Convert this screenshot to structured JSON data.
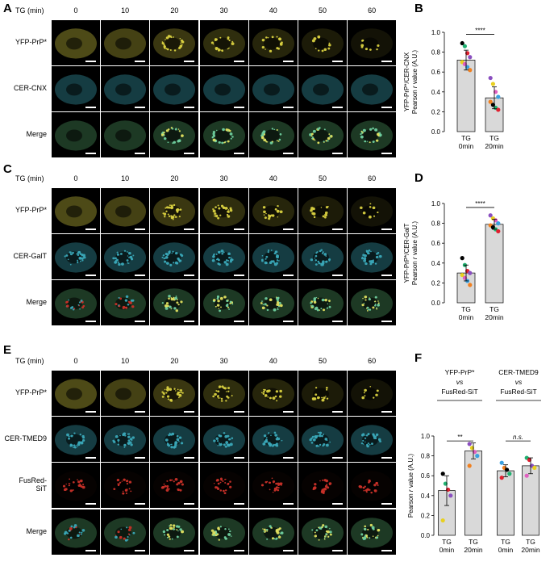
{
  "panel_labels": {
    "A": "A",
    "B": "B",
    "C": "C",
    "D": "D",
    "E": "E",
    "F": "F"
  },
  "tg_label": "TG (min)",
  "timepoints": [
    "0",
    "10",
    "20",
    "30",
    "40",
    "50",
    "60"
  ],
  "panelA": {
    "rows": [
      "YFP-PrP*",
      "CER-CNX",
      "Merge"
    ]
  },
  "panelC": {
    "rows": [
      "YFP-PrP*",
      "CER-GalT",
      "Merge"
    ]
  },
  "panelE": {
    "rows": [
      "YFP-PrP*",
      "CER-TMED9",
      "FusRed-SiT",
      "Merge"
    ]
  },
  "colors": {
    "yellow": "#d8d040",
    "cyan": "#3aa8b8",
    "green": "#5ab070",
    "red": "#c83028",
    "bar_fill": "#d9d9d9",
    "dots": [
      "#000000",
      "#8a4fc0",
      "#3aa0e0",
      "#20b070",
      "#e8d020",
      "#f08020",
      "#e02030",
      "#e060c0"
    ]
  },
  "chart_data": [
    {
      "panel": "B",
      "type": "bar",
      "ylabel": "YFP-PrP*/CER-CNX\nPearson r value (A.U.)",
      "ylim": [
        0,
        1.0
      ],
      "yticks": [
        "0.0",
        "0.2",
        "0.4",
        "0.6",
        "0.8",
        "1.0"
      ],
      "categories": [
        "TG\n0min",
        "TG\n20min"
      ],
      "values": [
        0.72,
        0.34
      ],
      "errors": [
        0.1,
        0.11
      ],
      "points": [
        [
          0.89,
          0.86,
          0.79,
          0.75,
          0.7,
          0.68,
          0.65,
          0.62
        ],
        [
          0.54,
          0.48,
          0.4,
          0.35,
          0.3,
          0.27,
          0.24,
          0.22
        ]
      ],
      "significance": "****"
    },
    {
      "panel": "D",
      "type": "bar",
      "ylabel": "YFP-PrP*/CER-GalT\nPearson r value (A.U.)",
      "ylim": [
        0,
        1.0
      ],
      "yticks": [
        "0.0",
        "0.2",
        "0.4",
        "0.6",
        "0.8",
        "1.0"
      ],
      "categories": [
        "TG\n0min",
        "TG\n20min"
      ],
      "values": [
        0.3,
        0.79
      ],
      "errors": [
        0.08,
        0.05
      ],
      "points": [
        [
          0.45,
          0.38,
          0.32,
          0.3,
          0.28,
          0.25,
          0.22,
          0.18
        ],
        [
          0.88,
          0.85,
          0.83,
          0.8,
          0.78,
          0.76,
          0.74,
          0.72
        ]
      ],
      "significance": "****"
    },
    {
      "panel": "F",
      "type": "bar",
      "ylabel": "Pearson r value (A.U.)",
      "ylim": [
        0,
        1.0
      ],
      "yticks": [
        "0.0",
        "0.2",
        "0.4",
        "0.6",
        "0.8",
        "1.0"
      ],
      "group_titles": [
        [
          "YFP-PrP*",
          "vs",
          "FusRed-SiT"
        ],
        [
          "CER-TMED9",
          "vs",
          "FusRed-SiT"
        ]
      ],
      "categories": [
        "TG\n0min",
        "TG\n20min",
        "TG\n0min",
        "TG\n20min"
      ],
      "values": [
        0.45,
        0.85,
        0.65,
        0.7
      ],
      "errors": [
        0.15,
        0.08,
        0.06,
        0.08
      ],
      "points": [
        [
          0.62,
          0.52,
          0.46,
          0.4,
          0.15
        ],
        [
          0.92,
          0.88,
          0.84,
          0.8,
          0.7
        ],
        [
          0.73,
          0.68,
          0.66,
          0.62,
          0.58
        ],
        [
          0.78,
          0.76,
          0.7,
          0.68,
          0.6
        ]
      ],
      "significance": [
        "**",
        "n.s."
      ]
    }
  ]
}
